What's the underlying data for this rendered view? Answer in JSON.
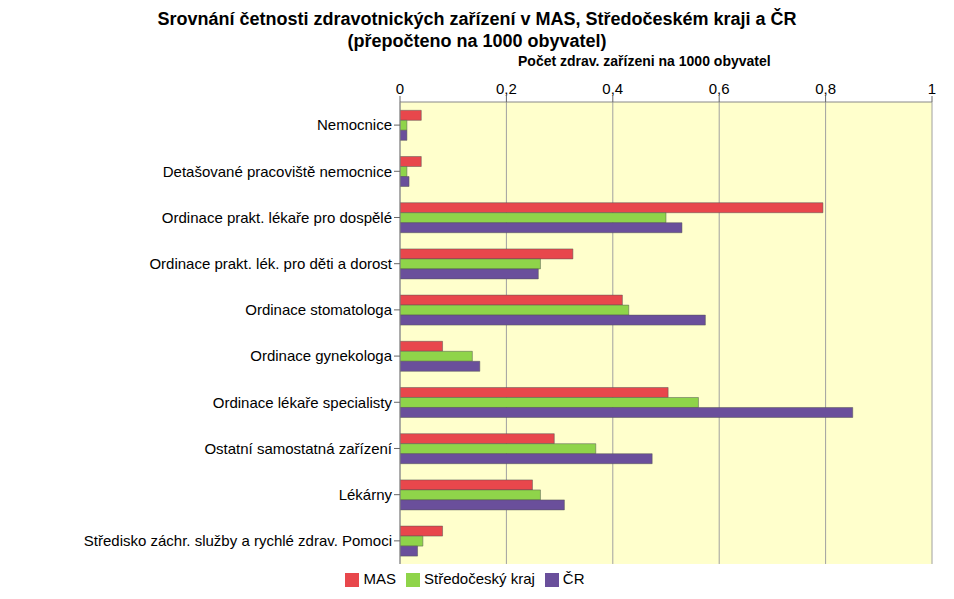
{
  "chart_data": {
    "type": "bar",
    "orientation": "horizontal",
    "title": "Srovnání četnosti zdravotnických zařízení v MAS, Středočeském kraji a ČR",
    "subtitle": "(přepočteno na 1000 obyvatel)",
    "x_label": "Počet zdrav. zařízeni na 1000 obyvatel",
    "categories": [
      "Nemocnice",
      "Detašované pracoviště nemocnice",
      "Ordinace prakt. lékaře pro dospělé",
      "Ordinace prakt. lék. pro děti a dorost",
      "Ordinace stomatologa",
      "Ordinace gynekologa",
      "Ordinace lékaře specialisty",
      "Ostatní samostatná zařízení",
      "Lékárny",
      "Středisko záchr. služby a rychlé zdrav. Pomoci"
    ],
    "series": [
      {
        "name": "MAS",
        "color": "#e8474c",
        "values": [
          0.04,
          0.04,
          0.795,
          0.325,
          0.418,
          0.08,
          0.504,
          0.29,
          0.249,
          0.08
        ]
      },
      {
        "name": "Středočeský kraj",
        "color": "#8fd44a",
        "values": [
          0.013,
          0.013,
          0.5,
          0.264,
          0.43,
          0.136,
          0.561,
          0.368,
          0.264,
          0.043
        ]
      },
      {
        "name": "ČR",
        "color": "#6a4f9b",
        "values": [
          0.013,
          0.017,
          0.53,
          0.26,
          0.574,
          0.15,
          0.851,
          0.474,
          0.309,
          0.033
        ]
      }
    ],
    "xlim": [
      0,
      1
    ],
    "xticks": [
      0,
      {
        "value": 0.2,
        "label": "0,2"
      },
      {
        "value": 0.4,
        "label": "0,4"
      },
      {
        "value": 0.6,
        "label": "0,6"
      },
      {
        "value": 0.8,
        "label": "0,8"
      },
      1
    ],
    "grid": true,
    "legend": "bottom"
  }
}
